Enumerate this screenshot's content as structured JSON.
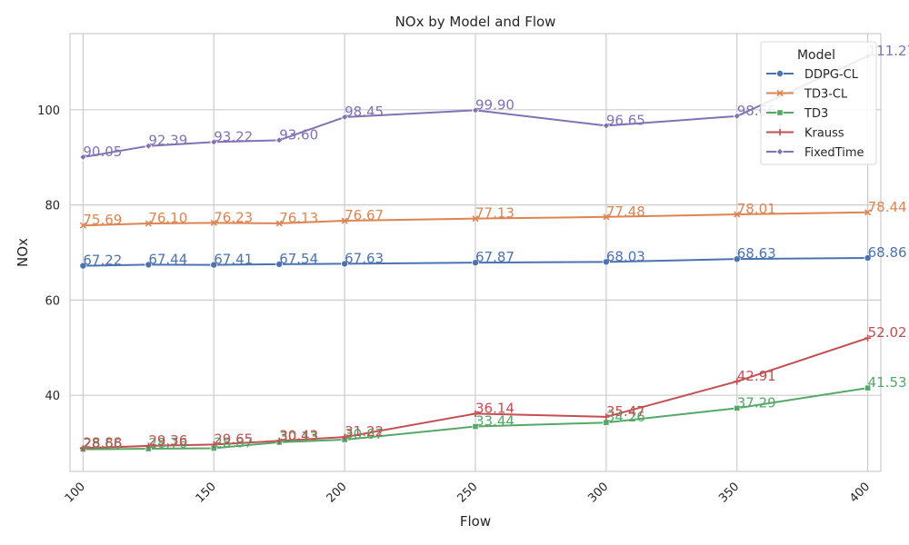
{
  "chart_data": {
    "type": "line",
    "title": "NOx by Model and Flow",
    "xlabel": "Flow",
    "ylabel": "NOx",
    "x": [
      100,
      125,
      150,
      175,
      200,
      250,
      300,
      350,
      400
    ],
    "xticks": [
      "100",
      "150",
      "200",
      "250",
      "300",
      "350",
      "400"
    ],
    "yticks": [
      "40",
      "60",
      "80",
      "100"
    ],
    "xlim": [
      95,
      405
    ],
    "ylim": [
      24,
      116
    ],
    "grid": true,
    "legend": {
      "title": "Model",
      "placement": "top-right"
    },
    "series": [
      {
        "name": "DDPG-CL",
        "color": "#4c72b0",
        "marker": "circle",
        "values": [
          67.22,
          67.44,
          67.41,
          67.54,
          67.63,
          67.87,
          68.03,
          68.63,
          68.86
        ]
      },
      {
        "name": "TD3-CL",
        "color": "#dd8452",
        "marker": "x",
        "values": [
          75.69,
          76.1,
          76.23,
          76.13,
          76.67,
          77.13,
          77.48,
          78.01,
          78.44
        ]
      },
      {
        "name": "TD3",
        "color": "#55a868",
        "marker": "square",
        "values": [
          28.66,
          28.76,
          28.87,
          30.13,
          30.67,
          33.44,
          34.26,
          37.29,
          41.53
        ]
      },
      {
        "name": "Krauss",
        "color": "#c44e52",
        "marker": "plus",
        "values": [
          28.88,
          29.36,
          29.65,
          30.43,
          31.22,
          36.14,
          35.47,
          42.91,
          52.02
        ]
      },
      {
        "name": "FixedTime",
        "color": "#8172b3",
        "marker": "diamond",
        "values": [
          90.05,
          92.39,
          93.22,
          93.6,
          98.45,
          99.9,
          96.65,
          98.66,
          111.27
        ]
      }
    ]
  }
}
